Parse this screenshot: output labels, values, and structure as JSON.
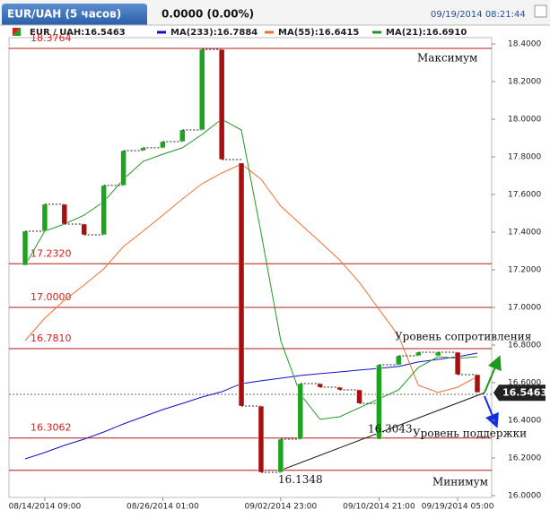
{
  "chart_data": {
    "type": "candlestick",
    "title": "EUR/UAH (5 часов)",
    "change": "0.0000 (0.00%)",
    "timestamp": "09/19/2014 08:21:44",
    "price_label": "EUR / UAH:16.5463",
    "last_price": {
      "value": 16.5463,
      "label": "16.5463"
    },
    "categories": [
      null,
      "08/14/2014 09:00",
      null,
      null,
      null,
      null,
      null,
      "08/26/2014 01:00",
      null,
      null,
      null,
      null,
      null,
      "09/02/2014 23:00",
      null,
      null,
      null,
      null,
      "09/10/2014 21:00",
      null,
      null,
      null,
      "09/19/2014 05:00",
      null
    ],
    "open": [
      17.224,
      17.405,
      17.548,
      17.443,
      17.386,
      17.648,
      17.833,
      17.848,
      17.881,
      17.943,
      18.371,
      17.767,
      16.476,
      16.124,
      16.3,
      16.595,
      16.576,
      16.562,
      16.3,
      16.695,
      16.743,
      16.743,
      16.762,
      16.643
    ],
    "close": [
      17.405,
      17.548,
      17.443,
      17.386,
      17.648,
      17.833,
      17.848,
      17.881,
      17.943,
      18.371,
      17.786,
      16.476,
      16.124,
      16.3,
      16.595,
      16.576,
      16.562,
      16.49,
      16.695,
      16.743,
      16.762,
      16.762,
      16.643,
      16.548
    ],
    "up_color": "#1fa31f",
    "down_color": "#a81010",
    "series": [
      {
        "name": "MA(233):16.7884",
        "color": "#1010cc",
        "values": [
          16.195,
          16.229,
          16.267,
          16.3,
          16.338,
          16.381,
          16.419,
          16.457,
          16.49,
          16.524,
          16.552,
          16.595,
          16.61,
          16.624,
          16.638,
          16.648,
          16.657,
          16.667,
          16.676,
          16.686,
          16.71,
          16.724,
          16.738,
          16.757
        ]
      },
      {
        "name": "MA(55):16.6415",
        "color": "#f07030",
        "values": [
          16.824,
          16.943,
          17.038,
          17.119,
          17.205,
          17.324,
          17.405,
          17.49,
          17.576,
          17.657,
          17.714,
          17.762,
          17.681,
          17.538,
          17.443,
          17.348,
          17.252,
          17.133,
          16.99,
          16.848,
          16.586,
          16.548,
          16.576,
          16.633
        ]
      },
      {
        "name": "MA(21):16.6910",
        "color": "#229922",
        "values": [
          17.224,
          17.405,
          17.443,
          17.49,
          17.562,
          17.681,
          17.776,
          17.814,
          17.848,
          17.919,
          18.0,
          17.943,
          17.395,
          16.824,
          16.538,
          16.405,
          16.419,
          16.467,
          16.514,
          16.562,
          16.681,
          16.738,
          16.729,
          16.738
        ]
      }
    ],
    "levels": [
      {
        "value": 18.3764,
        "label": "18.3764"
      },
      {
        "value": 17.232,
        "label": "17.2320"
      },
      {
        "value": 17,
        "label": "17.0000"
      },
      {
        "value": 16.781,
        "label": "16.7810"
      },
      {
        "value": 16.3062,
        "label": "16.3062"
      },
      {
        "value": 16.1348,
        "label": "16.1348"
      }
    ],
    "point_label": {
      "value": 16.3043,
      "label": "16.3043"
    },
    "annotations": {
      "max": "Максимум",
      "min": "Минимум",
      "resistance": "Уровень сопротивления",
      "support": "Уровень поддержки"
    },
    "ylim": [
      16,
      18.4
    ],
    "yticks": [
      {
        "value": 16,
        "label": "16.0000"
      },
      {
        "value": 16.2,
        "label": "16.2000"
      },
      {
        "value": 16.4,
        "label": "16.4000"
      },
      {
        "value": 16.6,
        "label": "16.6000"
      },
      {
        "value": 16.8,
        "label": "16.8000"
      },
      {
        "value": 17,
        "label": "17.0000"
      },
      {
        "value": 17.2,
        "label": "17.2000"
      },
      {
        "value": 17.4,
        "label": "17.4000"
      },
      {
        "value": 17.6,
        "label": "17.6000"
      },
      {
        "value": 17.8,
        "label": "17.8000"
      },
      {
        "value": 18,
        "label": "18.0000"
      },
      {
        "value": 18.2,
        "label": "18.2000"
      },
      {
        "value": 18.4,
        "label": "18.4000"
      }
    ]
  }
}
